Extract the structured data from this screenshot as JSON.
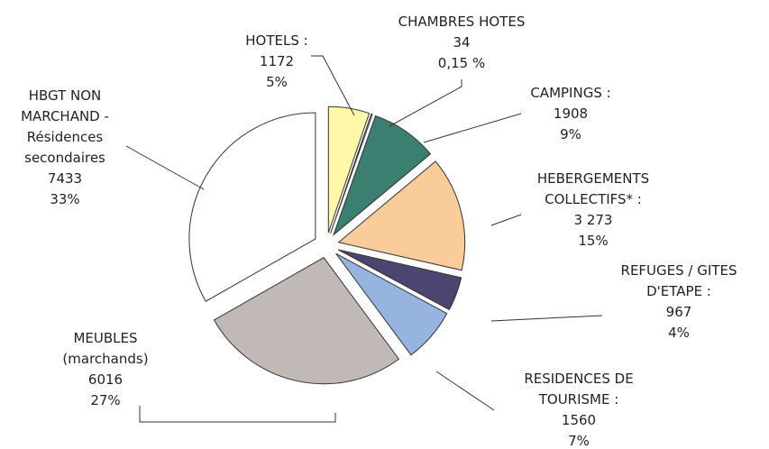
{
  "chart_data": {
    "type": "pie",
    "categories": [
      "HOTELS :",
      "CHAMBRES HOTES",
      "CAMPINGS :",
      "HEBERGEMENTS\nCOLLECTIFS* :",
      "REFUGES / GITES\nD'ETAPE :",
      "RESIDENCES DE\nTOURISME :",
      "MEUBLES\n(marchands)",
      "HBGT NON\nMARCHAND  -\nRésidences\nsecondaires"
    ],
    "values": [
      1172,
      34,
      1908,
      3273,
      967,
      1560,
      6016,
      7433
    ],
    "value_labels": [
      "1172",
      "34",
      "1908",
      "3 273",
      "967",
      "1560",
      "6016",
      "7433"
    ],
    "percent_labels": [
      "5%",
      "0,15 %",
      "9%",
      "15%",
      "4%",
      "7%",
      "27%",
      "33%"
    ],
    "colors": [
      "#fff8a8",
      "#ffffff",
      "#3a7f6f",
      "#f9cc9a",
      "#4b4570",
      "#96b4df",
      "#c1b9b5",
      "#ffffff"
    ]
  }
}
